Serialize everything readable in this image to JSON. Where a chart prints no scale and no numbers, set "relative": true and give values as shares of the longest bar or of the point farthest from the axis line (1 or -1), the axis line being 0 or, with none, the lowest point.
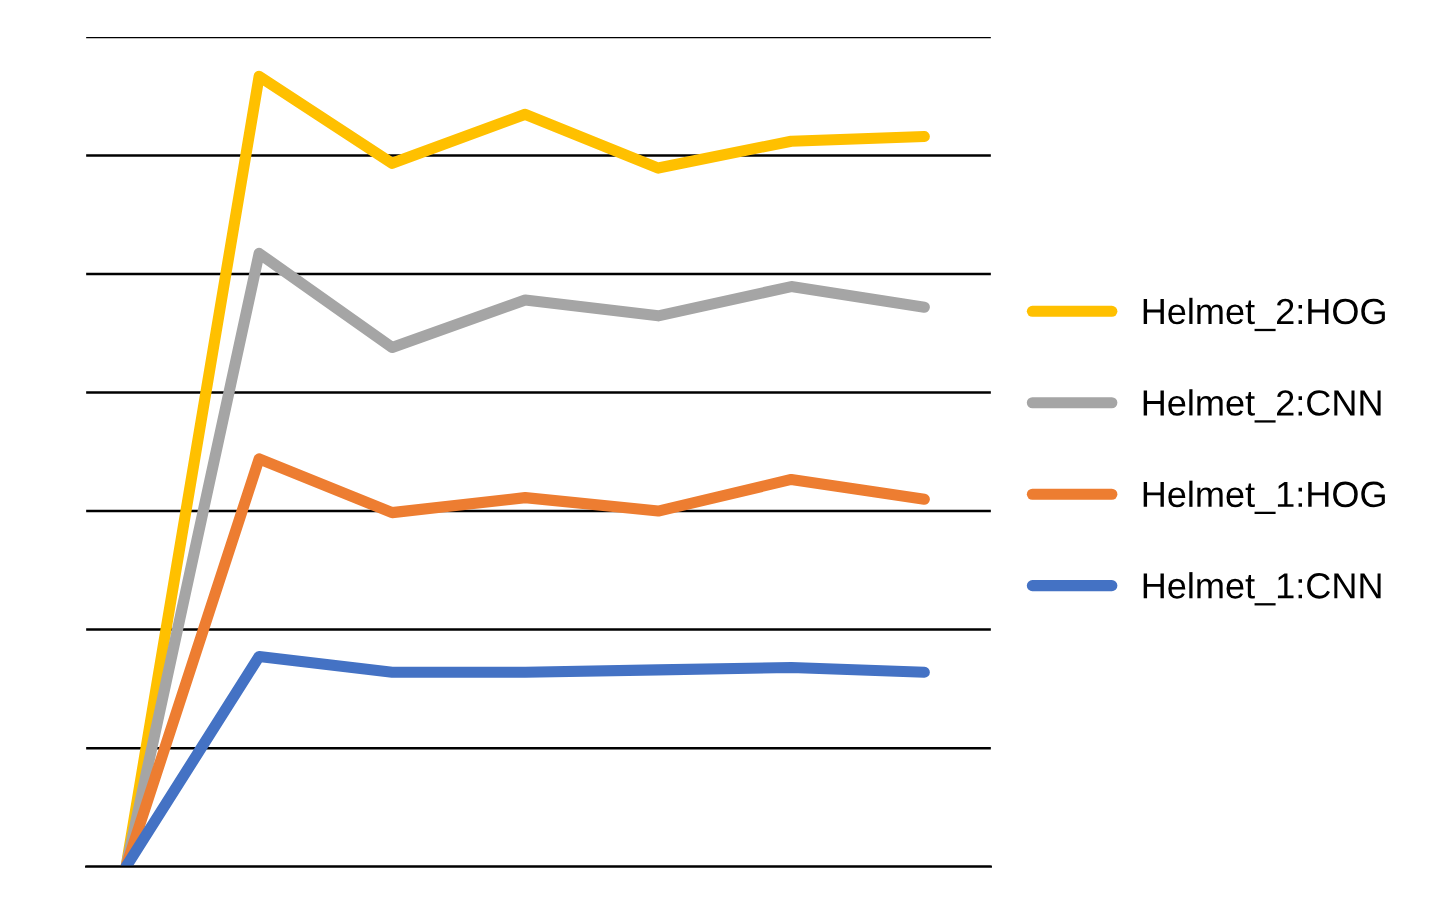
{
  "chart_data": {
    "type": "line",
    "relative": true,
    "categories": [
      null,
      null,
      null,
      null,
      null,
      null,
      null
    ],
    "series": [
      {
        "name": "Helmet_2:HOG",
        "color": "#ffc000",
        "values": [
          0,
          1,
          0.89,
          0.952,
          0.884,
          0.918,
          0.924
        ]
      },
      {
        "name": "Helmet_2:CNN",
        "color": "#a5a5a5",
        "values": [
          0,
          0.776,
          0.657,
          0.717,
          0.697,
          0.734,
          0.708
        ]
      },
      {
        "name": "Helmet_1:HOG",
        "color": "#ed7d31",
        "values": [
          0,
          0.516,
          0.448,
          0.467,
          0.45,
          0.49,
          0.465
        ]
      },
      {
        "name": "Helmet_1:CNN",
        "color": "#4472c4",
        "values": [
          0,
          0.266,
          0.246,
          0.246,
          0.249,
          0.252,
          0.246
        ]
      }
    ],
    "grid": "y",
    "legend": "right",
    "marker": "none",
    "line_style": "solid"
  }
}
